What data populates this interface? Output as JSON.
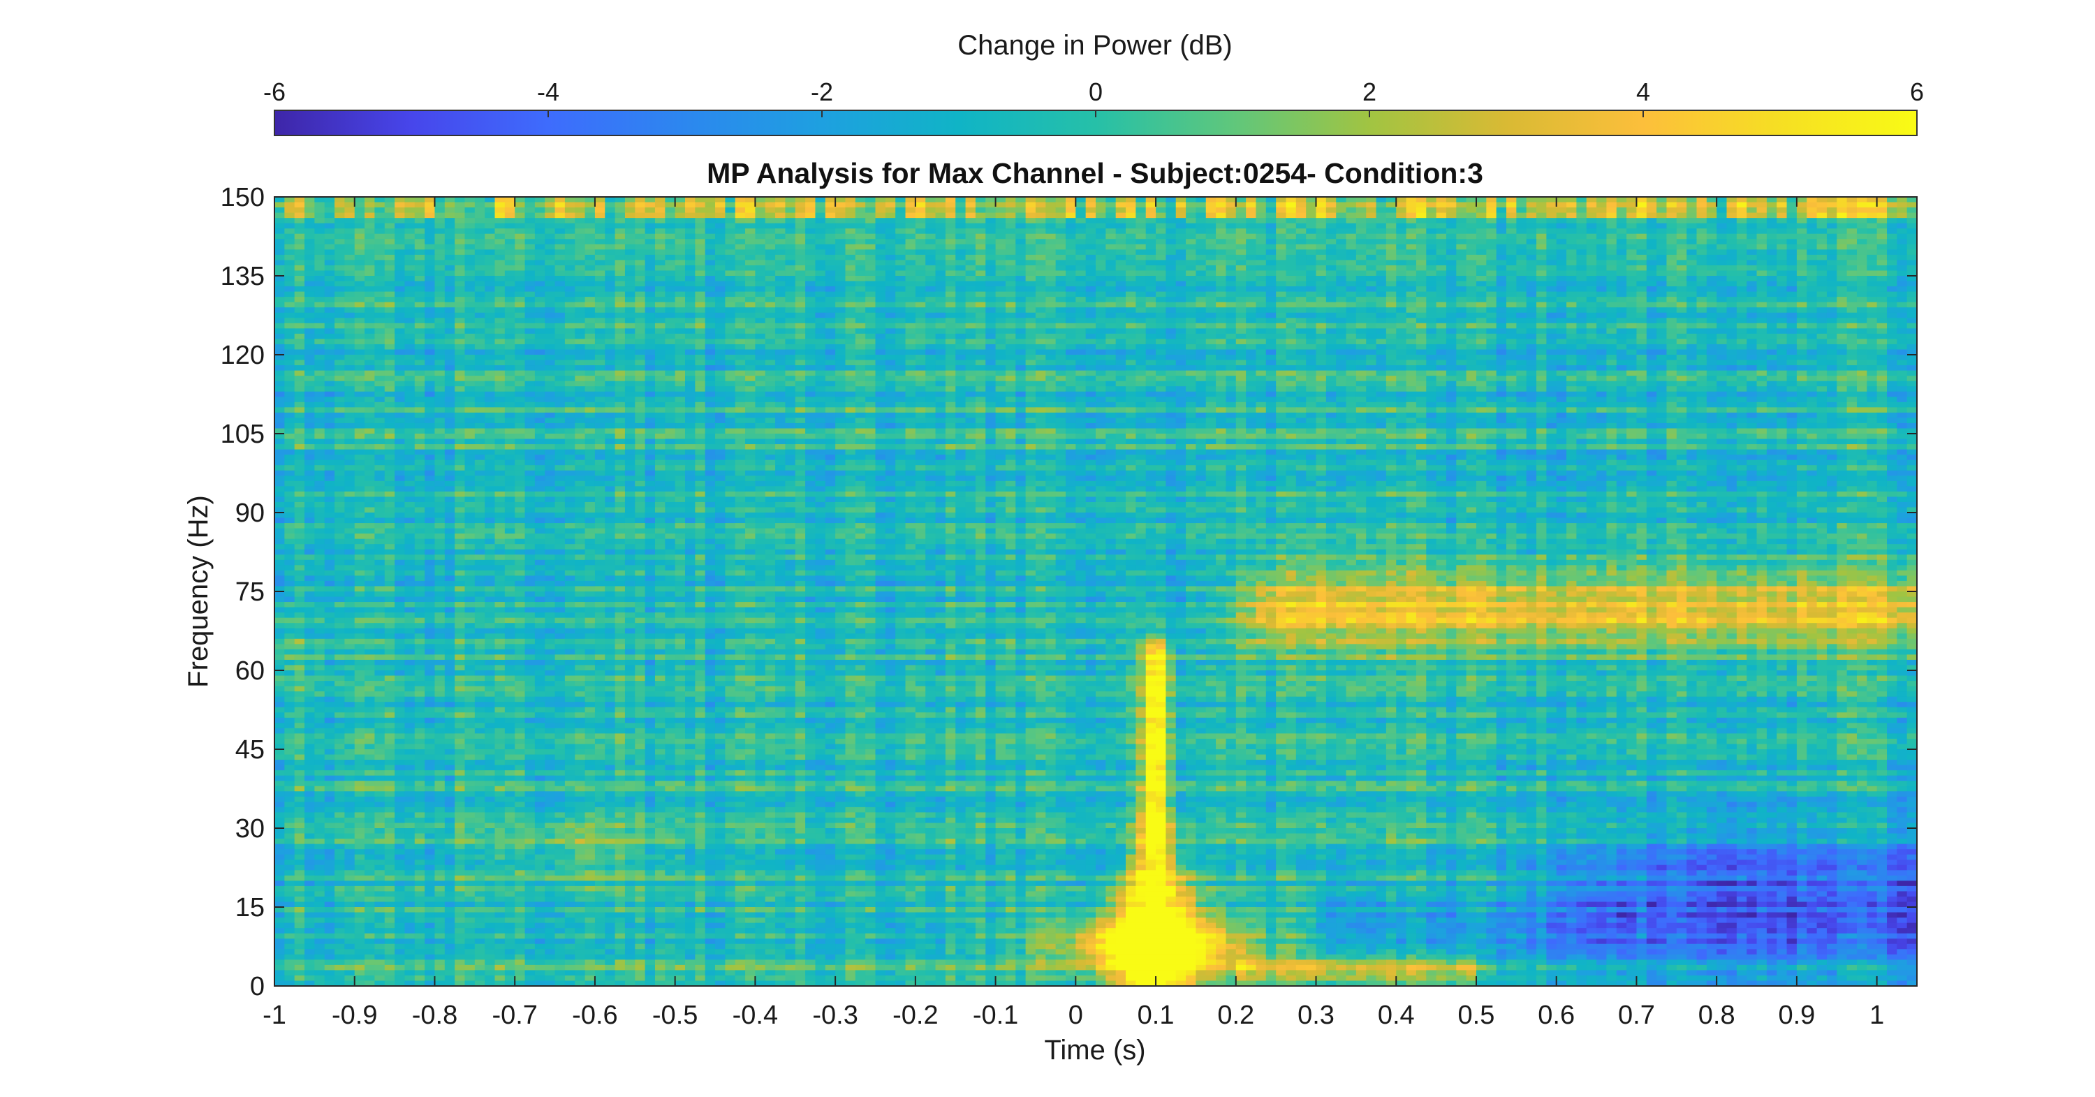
{
  "chart_data": {
    "type": "heatmap",
    "title": "MP Analysis for Max Channel - Subject:0254- Condition:3",
    "xlabel": "Time (s)",
    "ylabel": "Frequency (Hz)",
    "xlim": [
      -1,
      1.05
    ],
    "ylim": [
      0,
      150
    ],
    "xticks": [
      -1,
      -0.9,
      -0.8,
      -0.7,
      -0.6,
      -0.5,
      -0.4,
      -0.3,
      -0.2,
      -0.1,
      0,
      0.1,
      0.2,
      0.3,
      0.4,
      0.5,
      0.6,
      0.7,
      0.8,
      0.9,
      1
    ],
    "xtick_labels": [
      "-1",
      "-0.9",
      "-0.8",
      "-0.7",
      "-0.6",
      "-0.5",
      "-0.4",
      "-0.3",
      "-0.2",
      "-0.1",
      "0",
      "0.1",
      "0.2",
      "0.3",
      "0.4",
      "0.5",
      "0.6",
      "0.7",
      "0.8",
      "0.9",
      "1"
    ],
    "yticks": [
      0,
      15,
      30,
      45,
      60,
      75,
      90,
      105,
      120,
      135,
      150
    ],
    "ytick_labels": [
      "0",
      "15",
      "30",
      "45",
      "60",
      "75",
      "90",
      "105",
      "120",
      "135",
      "150"
    ],
    "grid": false,
    "colorbar": {
      "label": "Change in Power (dB)",
      "orientation": "horizontal",
      "placement": "top",
      "range": [
        -6,
        6
      ],
      "ticks": [
        -6,
        -4,
        -2,
        0,
        2,
        4,
        6
      ],
      "tick_labels": [
        "-6",
        "-4",
        "-2",
        "0",
        "2",
        "4",
        "6"
      ],
      "colormap": "parula",
      "colors": [
        "#3e26a8",
        "#4746eb",
        "#3e6cfd",
        "#2c87ef",
        "#1ea0e0",
        "#10b4c6",
        "#26c0a8",
        "#5fc77c",
        "#a1c442",
        "#d9ba34",
        "#fcbf3b",
        "#f6df23",
        "#f9fb15"
      ]
    },
    "features": [
      {
        "label": "broadband burst",
        "time": 0.1,
        "freq_range": [
          0,
          62
        ],
        "value_db": 6
      },
      {
        "label": "low-frequency band",
        "time_range": [
          0.0,
          0.25
        ],
        "freq_range": [
          4,
          12
        ],
        "value_db": 6
      },
      {
        "label": "gamma band",
        "time_range": [
          0.22,
          1.05
        ],
        "freq_range": [
          64,
          80
        ],
        "value_db": 4.5
      },
      {
        "label": "post-stimulus suppression",
        "time_range": [
          0.7,
          1.05
        ],
        "freq_range": [
          5,
          25
        ],
        "value_db": -5
      }
    ]
  }
}
